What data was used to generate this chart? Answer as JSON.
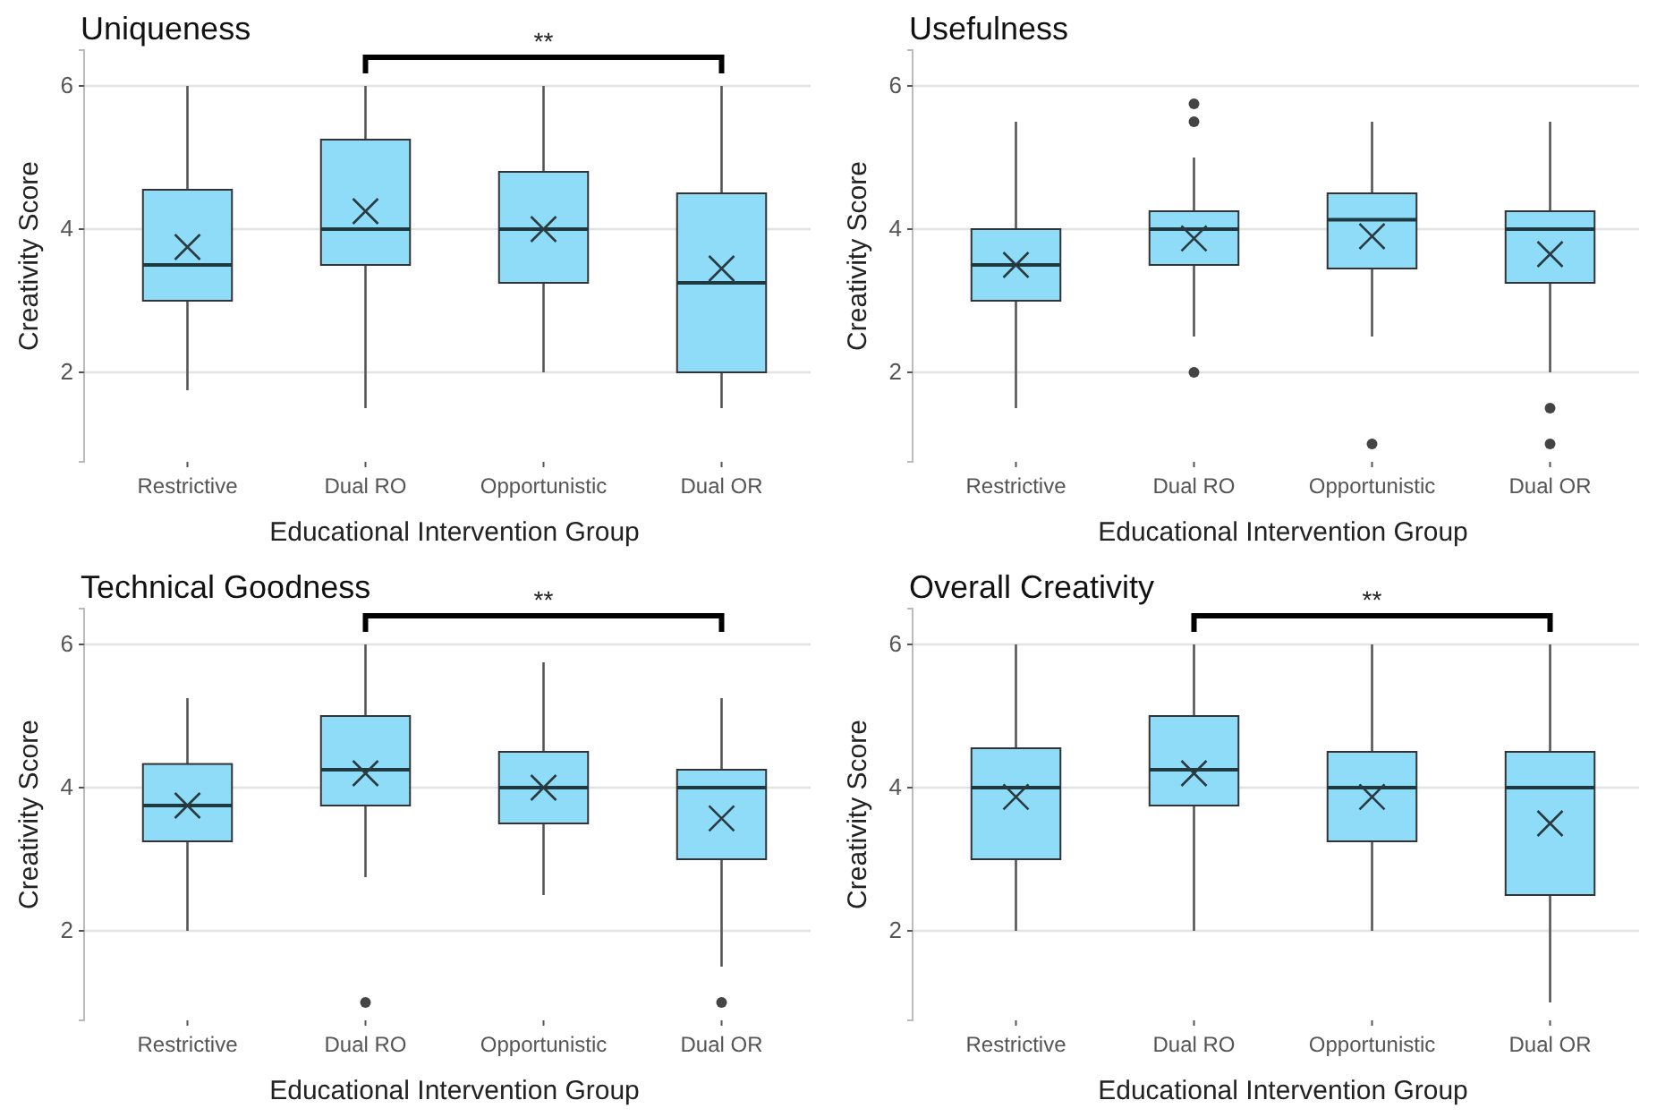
{
  "chart_data": [
    {
      "type": "box",
      "title": "Uniqueness",
      "xlabel": "Educational Intervention Group",
      "ylabel": "Creativity Score",
      "categories": [
        "Restrictive",
        "Dual RO",
        "Opportunistic",
        "Dual OR"
      ],
      "color": "#8fdcf8",
      "ylim": [
        0.75,
        6.5
      ],
      "yticks": [
        2,
        4,
        6
      ],
      "grid": "y",
      "annotations": [
        "**"
      ],
      "boxes": [
        {
          "low": 1.75,
          "q1": 3,
          "median": 3.5,
          "q3": 4.55,
          "high": 6,
          "mean": 3.75
        },
        {
          "low": 1.5,
          "q1": 3.5,
          "median": 4,
          "q3": 5.25,
          "high": 6,
          "mean": 4.25
        },
        {
          "low": 2,
          "q1": 3.25,
          "median": 4,
          "q3": 4.8,
          "high": 6,
          "mean": 4
        },
        {
          "low": 1.5,
          "q1": 2,
          "median": 3.25,
          "q3": 4.5,
          "high": 6,
          "mean": 3.45
        }
      ]
    },
    {
      "type": "box",
      "title": "Usefulness",
      "xlabel": "Educational Intervention Group",
      "ylabel": "Creativity Score",
      "categories": [
        "Restrictive",
        "Dual RO",
        "Opportunistic",
        "Dual OR"
      ],
      "color": "#8fdcf8",
      "ylim": [
        0.75,
        6.5
      ],
      "yticks": [
        2,
        4,
        6
      ],
      "grid": "y",
      "boxes": [
        {
          "low": 1.5,
          "q1": 3,
          "median": 3.5,
          "q3": 4,
          "high": 5.5,
          "mean": 3.5
        },
        {
          "low": 2.5,
          "q1": 3.5,
          "median": 4,
          "q3": 4.25,
          "high": 5,
          "mean": 3.87,
          "outliers": [
            5.75,
            5.5,
            2
          ]
        },
        {
          "low": 2.5,
          "q1": 3.45,
          "median": 4.13,
          "q3": 4.5,
          "high": 5.5,
          "mean": 3.9,
          "outliers": [
            1
          ]
        },
        {
          "low": 2,
          "q1": 3.25,
          "median": 4,
          "q3": 4.25,
          "high": 5.5,
          "mean": 3.65,
          "outliers": [
            1.5,
            1
          ]
        }
      ]
    },
    {
      "type": "box",
      "title": "Technical Goodness",
      "xlabel": "Educational Intervention Group",
      "ylabel": "Creativity Score",
      "categories": [
        "Restrictive",
        "Dual RO",
        "Opportunistic",
        "Dual OR"
      ],
      "color": "#8fdcf8",
      "ylim": [
        0.75,
        6.5
      ],
      "yticks": [
        2,
        4,
        6
      ],
      "grid": "y",
      "annotations": [
        "**"
      ],
      "boxes": [
        {
          "low": 2,
          "q1": 3.25,
          "median": 3.75,
          "q3": 4.33,
          "high": 5.25,
          "mean": 3.75
        },
        {
          "low": 2.75,
          "q1": 3.75,
          "median": 4.25,
          "q3": 5,
          "high": 6,
          "mean": 4.2,
          "outliers": [
            1
          ]
        },
        {
          "low": 2.5,
          "q1": 3.5,
          "median": 4,
          "q3": 4.5,
          "high": 5.75,
          "mean": 4
        },
        {
          "low": 1.5,
          "q1": 3,
          "median": 4,
          "q3": 4.25,
          "high": 5.25,
          "mean": 3.57,
          "outliers": [
            1
          ]
        }
      ]
    },
    {
      "type": "box",
      "title": "Overall Creativity",
      "xlabel": "Educational Intervention Group",
      "ylabel": "Creativity Score",
      "categories": [
        "Restrictive",
        "Dual RO",
        "Opportunistic",
        "Dual OR"
      ],
      "color": "#8fdcf8",
      "ylim": [
        0.75,
        6.5
      ],
      "yticks": [
        2,
        4,
        6
      ],
      "grid": "y",
      "annotations": [
        "**"
      ],
      "boxes": [
        {
          "low": 2,
          "q1": 3,
          "median": 4,
          "q3": 4.55,
          "high": 6,
          "mean": 3.87
        },
        {
          "low": 2,
          "q1": 3.75,
          "median": 4.25,
          "q3": 5,
          "high": 6,
          "mean": 4.2
        },
        {
          "low": 2,
          "q1": 3.25,
          "median": 4,
          "q3": 4.5,
          "high": 6,
          "mean": 3.87
        },
        {
          "low": 1,
          "q1": 2.5,
          "median": 4,
          "q3": 4.5,
          "high": 6,
          "mean": 3.5
        }
      ]
    }
  ]
}
